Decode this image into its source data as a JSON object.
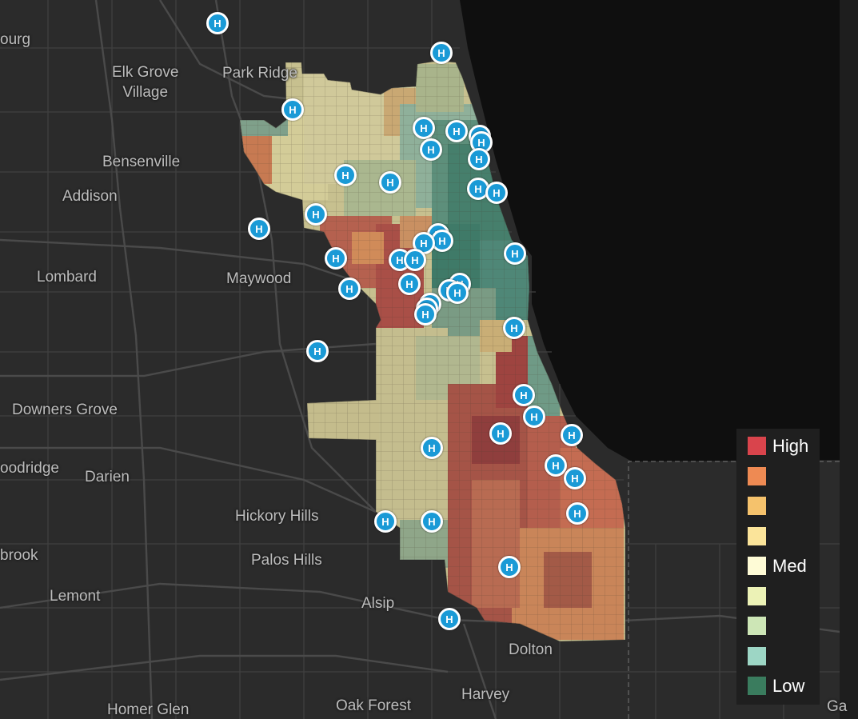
{
  "map": {
    "places": [
      {
        "id": "place-bourg",
        "text": "ourg"
      },
      {
        "id": "place-elk-grove-village",
        "text": "Elk Grove\nVillage"
      },
      {
        "id": "place-park-ridge",
        "text": "Park Ridge"
      },
      {
        "id": "place-bensenville",
        "text": "Bensenville"
      },
      {
        "id": "place-addison",
        "text": "Addison"
      },
      {
        "id": "place-lombard",
        "text": "Lombard"
      },
      {
        "id": "place-maywood",
        "text": "Maywood"
      },
      {
        "id": "place-downers-grove",
        "text": "Downers Grove"
      },
      {
        "id": "place-woodridge",
        "text": "oodridge"
      },
      {
        "id": "place-darien",
        "text": "Darien"
      },
      {
        "id": "place-hickory-hills",
        "text": "Hickory Hills"
      },
      {
        "id": "place-bolingbrook",
        "text": "brook"
      },
      {
        "id": "place-palos-hills",
        "text": "Palos Hills"
      },
      {
        "id": "place-lemont",
        "text": "Lemont"
      },
      {
        "id": "place-alsip",
        "text": "Alsip"
      },
      {
        "id": "place-dolton",
        "text": "Dolton"
      },
      {
        "id": "place-harvey",
        "text": "Harvey"
      },
      {
        "id": "place-homer-glen",
        "text": "Homer Glen"
      },
      {
        "id": "place-oak-forest",
        "text": "Oak Forest"
      },
      {
        "id": "place-gary",
        "text": "Ga"
      }
    ],
    "hospital_marker_glyph": "H",
    "hospital_count": 42,
    "colors": {
      "background": "#2b2b2b",
      "lake": "#0f0f0f",
      "marker": "#1a9ad6"
    }
  },
  "legend": {
    "items": [
      {
        "label": "High",
        "color": "#d9444c"
      },
      {
        "label": "",
        "color": "#ee8a53"
      },
      {
        "label": "",
        "color": "#f5c26c"
      },
      {
        "label": "",
        "color": "#fbe49a"
      },
      {
        "label": "Med",
        "color": "#fefbd6"
      },
      {
        "label": "",
        "color": "#ecf2b6"
      },
      {
        "label": "",
        "color": "#cde6b6"
      },
      {
        "label": "",
        "color": "#9dd6c5"
      },
      {
        "label": "Low",
        "color": "#3a7c5e"
      }
    ]
  }
}
